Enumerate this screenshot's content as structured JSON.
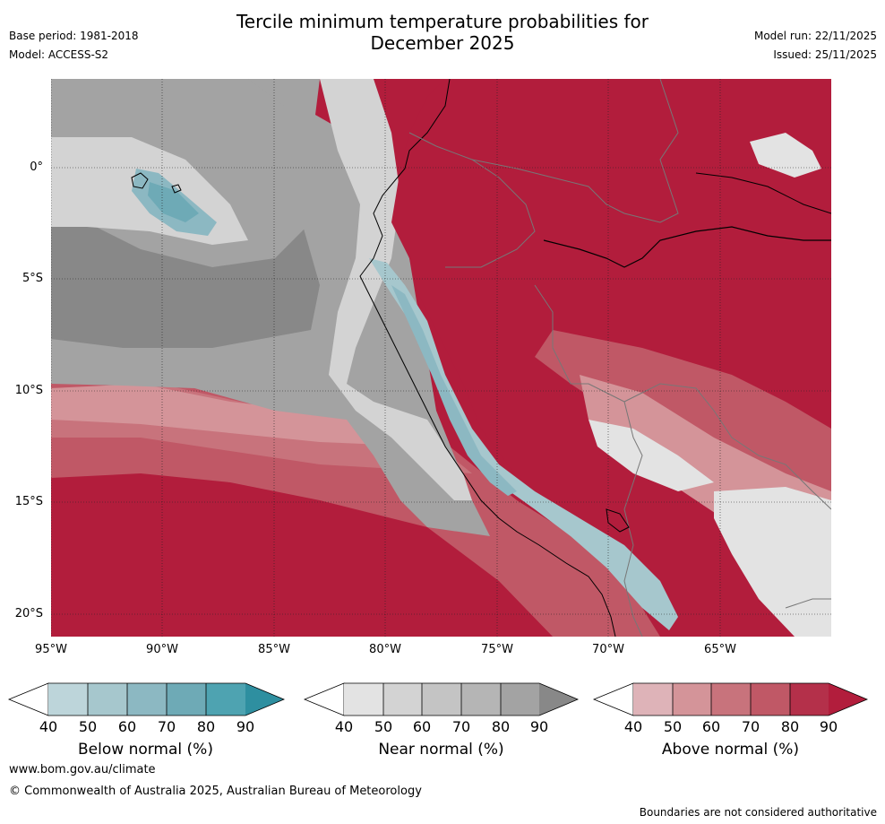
{
  "header": {
    "title_line1": "Tercile minimum temperature probabilities for",
    "title_line2": "December 2025",
    "base_period": "Base period: 1981-2018",
    "model": "Model: ACCESS-S2",
    "model_run": "Model run: 22/11/2025",
    "issued": "Issued: 25/11/2025"
  },
  "map": {
    "lat_labels": [
      "0°",
      "5°S",
      "10°S",
      "15°S",
      "20°S"
    ],
    "lon_labels": [
      "95°W",
      "90°W",
      "85°W",
      "80°W",
      "75°W",
      "70°W",
      "65°W"
    ]
  },
  "colorbars": [
    {
      "label": "Below normal (%)",
      "ticks": [
        "40",
        "50",
        "60",
        "70",
        "80",
        "90"
      ],
      "colors": [
        "#ffffff",
        "#bdd5da",
        "#a6c7cd",
        "#8cb8c2",
        "#6eaab6",
        "#4ea3b1",
        "#2e8fa0"
      ]
    },
    {
      "label": "Near normal (%)",
      "ticks": [
        "40",
        "50",
        "60",
        "70",
        "80",
        "90"
      ],
      "colors": [
        "#ffffff",
        "#e3e3e3",
        "#d3d3d3",
        "#c4c4c4",
        "#b5b5b5",
        "#a3a3a3",
        "#888888"
      ]
    },
    {
      "label": "Above normal (%)",
      "ticks": [
        "40",
        "50",
        "60",
        "70",
        "80",
        "90"
      ],
      "colors": [
        "#ffffff",
        "#deb3b8",
        "#d49499",
        "#c8737c",
        "#c05866",
        "#b4304a",
        "#b21d3c"
      ]
    }
  ],
  "footer": {
    "website": "www.bom.gov.au/climate",
    "copyright": "© Commonwealth of Australia 2025, Australian Bureau of Meteorology",
    "disclaimer": "Boundaries are not considered authoritative"
  }
}
